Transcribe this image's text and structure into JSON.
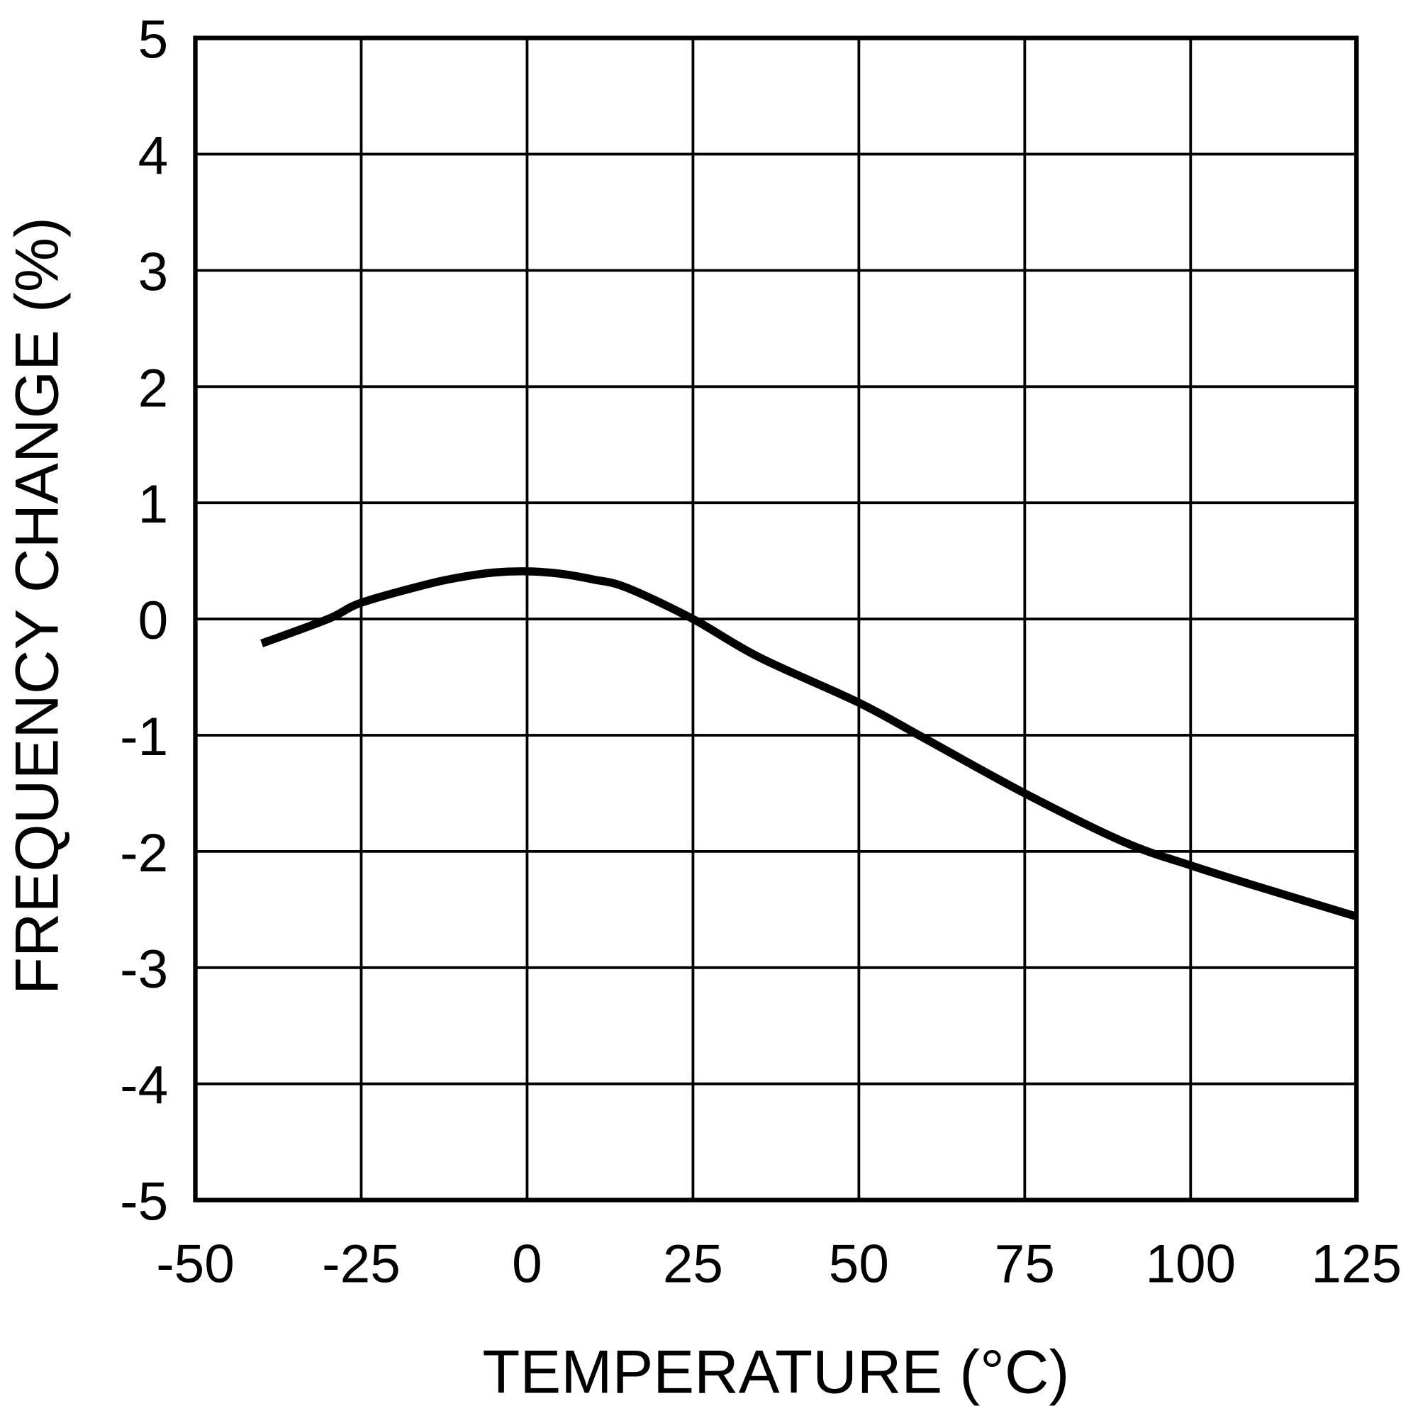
{
  "chart_data": {
    "type": "line",
    "title": "",
    "xlabel": "TEMPERATURE (°C)",
    "ylabel": "FREQUENCY CHANGE (%)",
    "xlim": [
      -50,
      125
    ],
    "ylim": [
      -5,
      5
    ],
    "grid": true,
    "x_ticks": [
      "-50",
      "-25",
      "0",
      "25",
      "50",
      "75",
      "100",
      "125"
    ],
    "y_ticks": [
      "5",
      "4",
      "3",
      "2",
      "1",
      "0",
      "-1",
      "-2",
      "-3",
      "-4",
      "-5"
    ],
    "series": [
      {
        "color": "#000000",
        "x": [
          -40,
          -30,
          -25,
          -15,
          -10,
          -5,
          0,
          5,
          10,
          15,
          25,
          35,
          50,
          60,
          75,
          90,
          100,
          110,
          125
        ],
        "y": [
          -0.21,
          0.0,
          0.14,
          0.3,
          0.36,
          0.4,
          0.41,
          0.39,
          0.34,
          0.27,
          0.0,
          -0.33,
          -0.72,
          -1.03,
          -1.5,
          -1.92,
          -2.12,
          -2.3,
          -2.56
        ]
      }
    ]
  }
}
